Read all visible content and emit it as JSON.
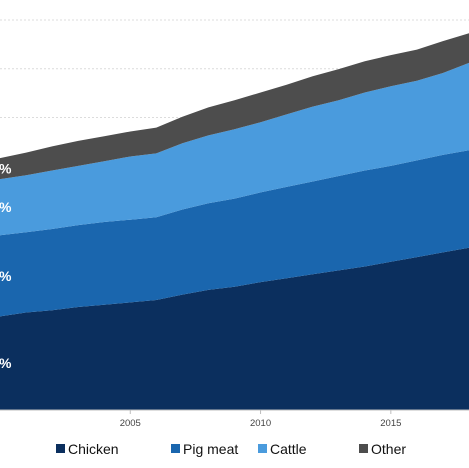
{
  "chart_data": {
    "type": "area",
    "stacked": true,
    "x": [
      2000,
      2001,
      2002,
      2003,
      2004,
      2005,
      2006,
      2007,
      2008,
      2009,
      2010,
      2011,
      2012,
      2013,
      2014,
      2015,
      2016,
      2017,
      2018
    ],
    "x_ticks": [
      "2005",
      "2010",
      "2015"
    ],
    "xlim": [
      2000,
      2018
    ],
    "ylim": [
      0,
      100
    ],
    "grid": "horizontal",
    "series": [
      {
        "name": "Chicken",
        "color": "#0b2f5e",
        "values": [
          24,
          25,
          25.6,
          26.4,
          27,
          27.6,
          28.2,
          29.6,
          30.8,
          31.6,
          32.8,
          33.8,
          34.8,
          35.8,
          36.8,
          38,
          39.2,
          40.4,
          41.6
        ]
      },
      {
        "name": "Pig meat",
        "color": "#1a66ae",
        "values": [
          20.8,
          20.6,
          20.8,
          21,
          21.2,
          21.2,
          21.2,
          21.8,
          22.2,
          22.6,
          23,
          23.4,
          23.8,
          24.2,
          24.6,
          24.6,
          24.8,
          25,
          25
        ]
      },
      {
        "name": "Cattle",
        "color": "#4a9bdd",
        "values": [
          14.4,
          14.6,
          15,
          15.2,
          15.6,
          16.2,
          16.4,
          17,
          17.4,
          17.8,
          18,
          18.6,
          19.2,
          19.4,
          20,
          20.4,
          20.4,
          21,
          22.4
        ]
      },
      {
        "name": "Other",
        "color": "#4d4d4d",
        "values": [
          5.4,
          5.8,
          6.2,
          6.4,
          6.4,
          6.4,
          6.6,
          6.8,
          7.2,
          7.4,
          7.6,
          7.6,
          7.8,
          8,
          8,
          8,
          8,
          8.2,
          7.6
        ]
      }
    ],
    "visible_labels": [
      "%",
      "%",
      "%",
      "%"
    ]
  },
  "legend": {
    "items": [
      {
        "label": "Chicken",
        "color": "#0b2f5e"
      },
      {
        "label": "Pig meat",
        "color": "#1a66ae"
      },
      {
        "label": "Cattle",
        "color": "#4a9bdd"
      },
      {
        "label": "Other",
        "color": "#4d4d4d"
      }
    ]
  },
  "colors": {
    "grid": "#dcdcdc",
    "axis": "#bdbdbd"
  }
}
